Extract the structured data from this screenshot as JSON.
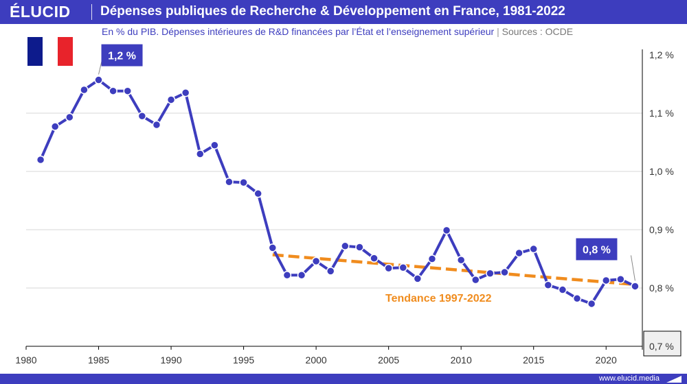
{
  "header": {
    "logo": "ÉLUCID",
    "title": "Dépenses publiques de Recherche & Développement en France, 1981-2022"
  },
  "subtitle": "En % du PIB. Dépenses intérieures de R&D financées par l’État et l’enseignement supérieur",
  "separator": "|",
  "source": "Sources : OCDE",
  "footer": {
    "url": "www.elucid.media"
  },
  "colors": {
    "brand": "#3d3dbe",
    "series": "#3d3dbe",
    "trend": "#f08c1e",
    "flag_blue": "#0d1b8c",
    "flag_white": "#ffffff",
    "flag_red": "#e8232b"
  },
  "icons": {
    "flag": "france-flag-icon",
    "footer_mark": "elucid-mark-icon"
  },
  "chart_data": {
    "type": "line",
    "x": [
      1981,
      1982,
      1983,
      1984,
      1985,
      1986,
      1987,
      1988,
      1989,
      1990,
      1991,
      1992,
      1993,
      1994,
      1995,
      1996,
      1997,
      1998,
      1999,
      2000,
      2001,
      2002,
      2003,
      2004,
      2005,
      2006,
      2007,
      2008,
      2009,
      2010,
      2011,
      2012,
      2013,
      2014,
      2015,
      2016,
      2017,
      2018,
      2019,
      2020,
      2021,
      2022
    ],
    "series": [
      {
        "values": [
          1.02,
          1.077,
          1.093,
          1.14,
          1.157,
          1.138,
          1.138,
          1.095,
          1.08,
          1.123,
          1.135,
          1.03,
          1.045,
          0.982,
          0.981,
          0.962,
          0.869,
          0.822,
          0.822,
          0.846,
          0.829,
          0.872,
          0.87,
          0.851,
          0.834,
          0.835,
          0.816,
          0.85,
          0.899,
          0.848,
          0.814,
          0.825,
          0.827,
          0.86,
          0.867,
          0.805,
          0.797,
          0.782,
          0.773,
          0.813,
          0.815,
          0.803
        ]
      }
    ],
    "trend": {
      "label": "Tendance 1997-2022",
      "start": [
        1997,
        0.857
      ],
      "end": [
        2022,
        0.806
      ]
    },
    "annotations": [
      {
        "text": "1,2 %",
        "x": 1985,
        "y": 1.157
      },
      {
        "text": "0,8 %",
        "x": 2022,
        "y": 0.803
      }
    ],
    "xlim": [
      1980,
      2022.5
    ],
    "ylim": [
      0.7,
      1.2
    ],
    "xticks": [
      "1980",
      "1985",
      "1990",
      "1995",
      "2000",
      "2005",
      "2010",
      "2015",
      "2020"
    ],
    "yticks": [
      "1,2 %",
      "1,1 %",
      "1,0 %",
      "0,9 %",
      "0,8 %",
      "0,7 %"
    ],
    "grid": true,
    "axis_position": "right"
  }
}
